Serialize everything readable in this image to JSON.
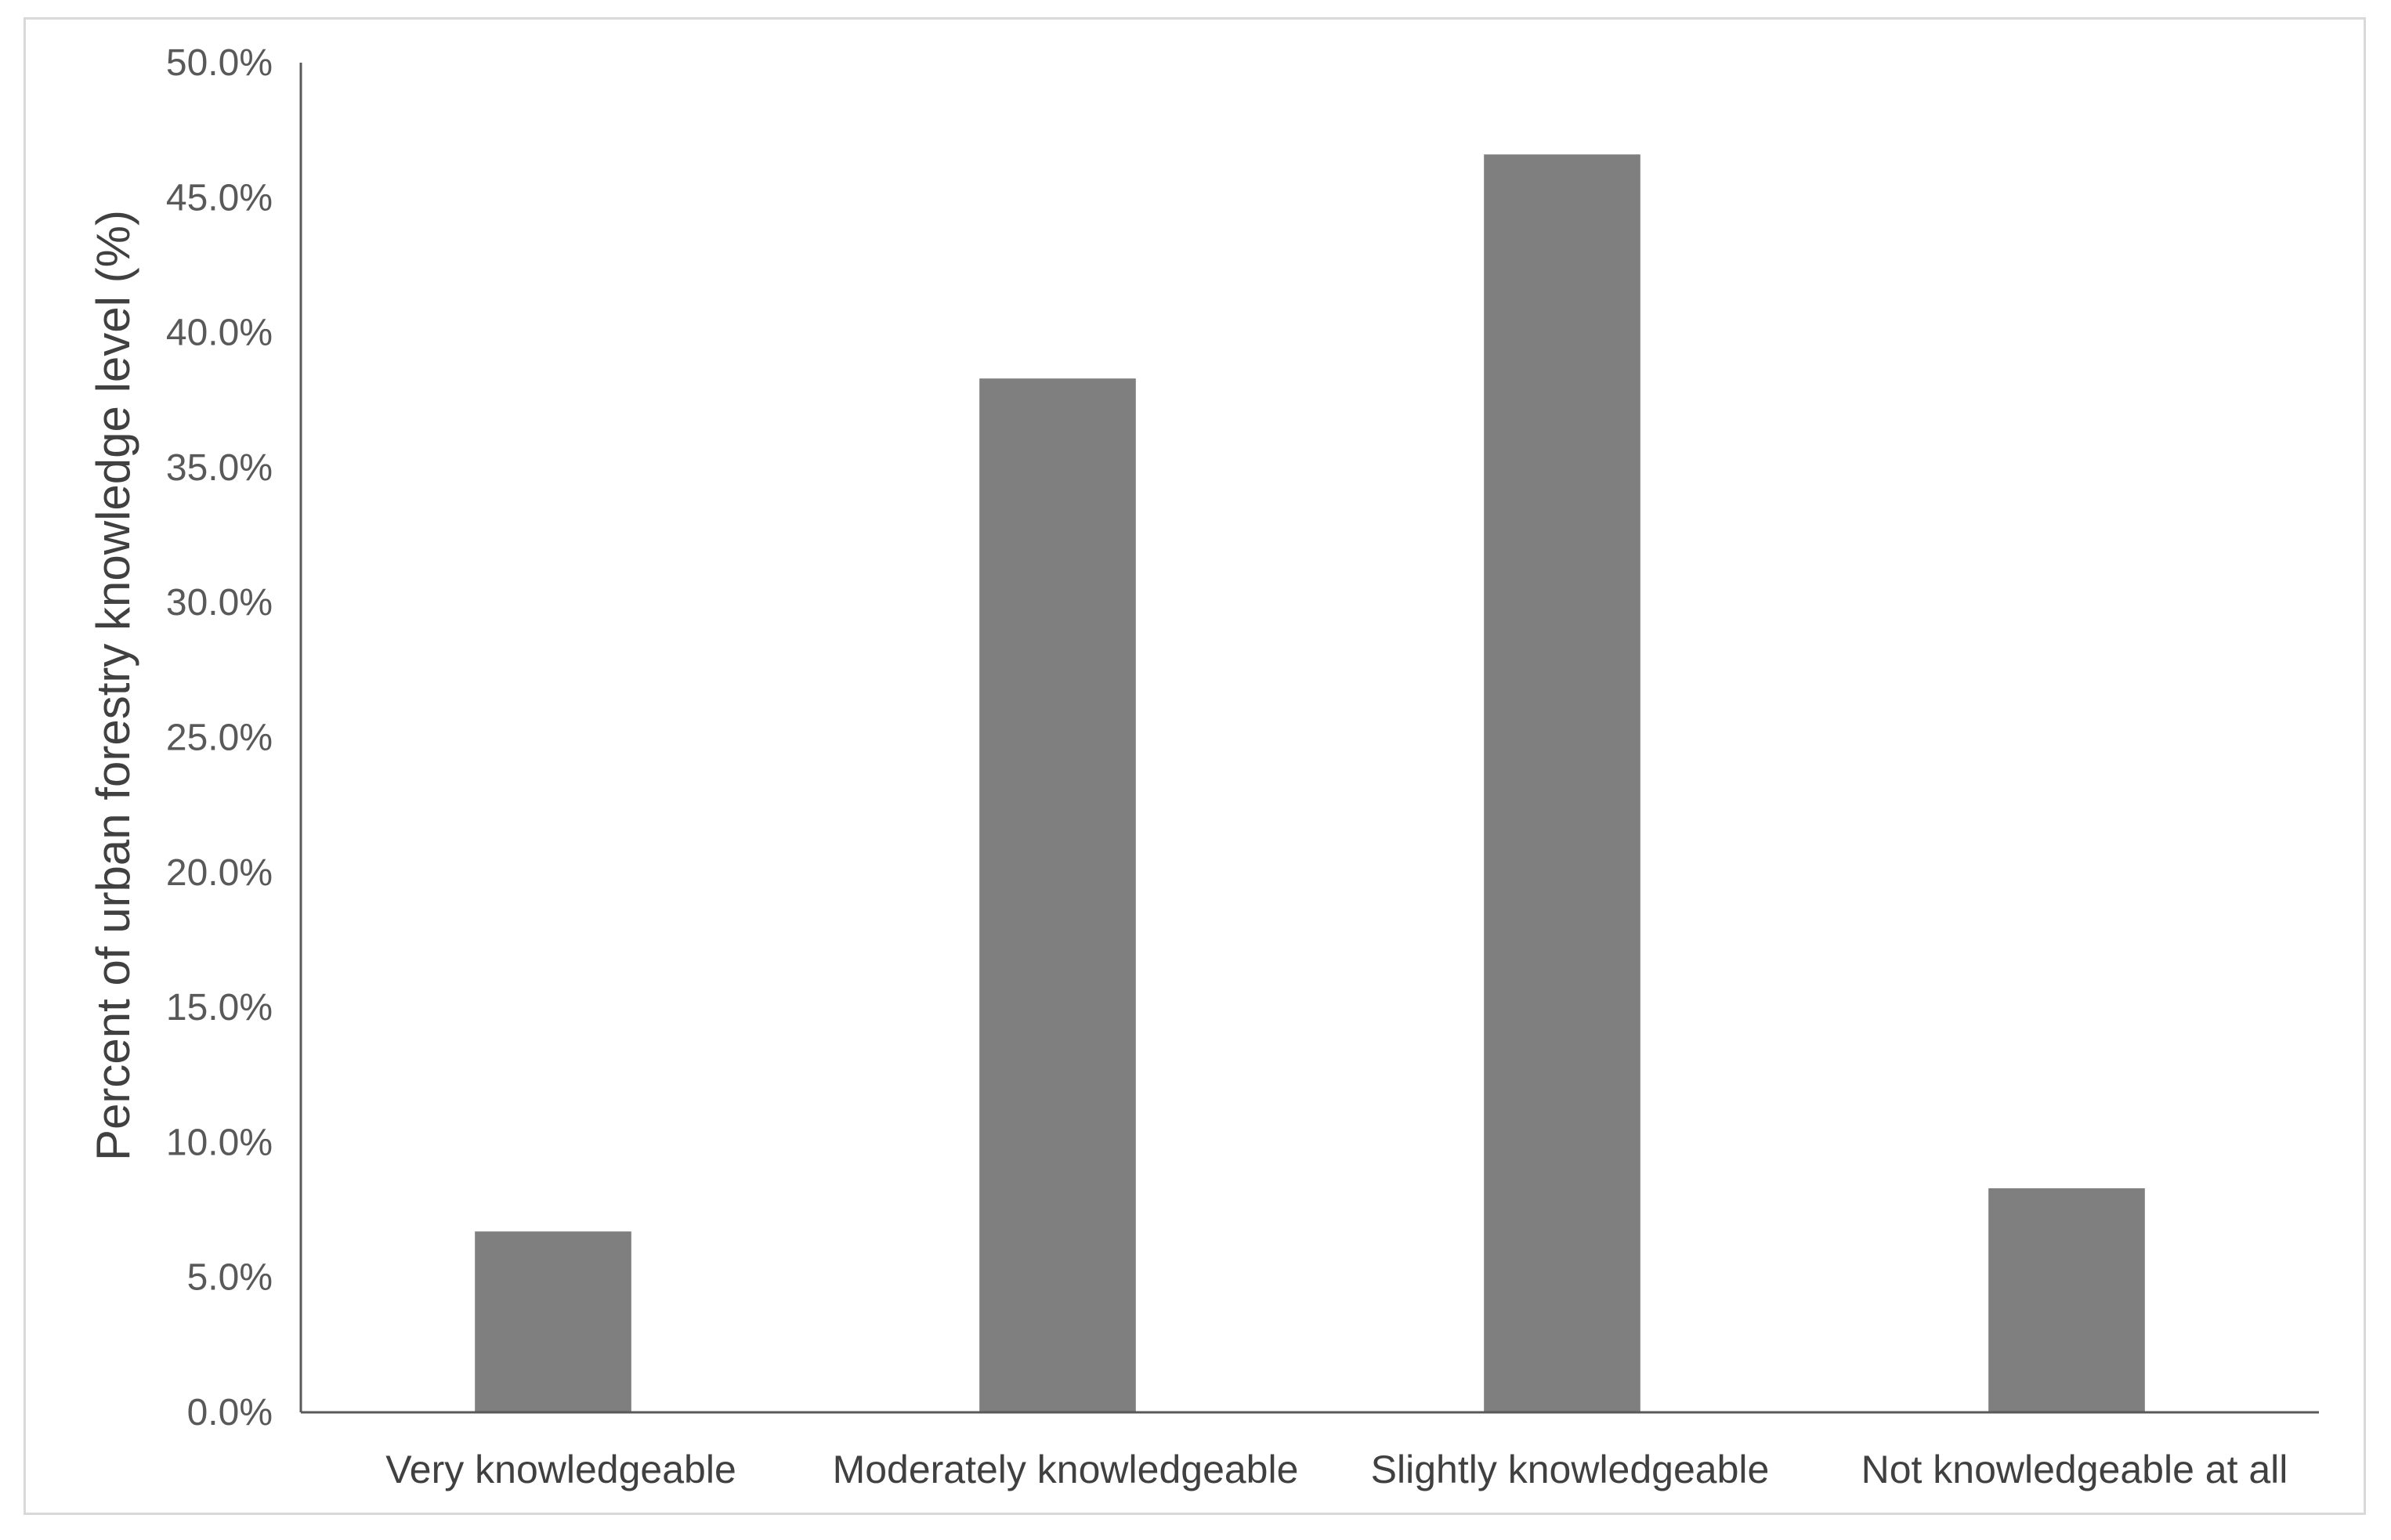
{
  "chart_data": {
    "type": "bar",
    "title": "",
    "xlabel": "",
    "ylabel": "Percent of urban forestry knowledge level (%)",
    "categories": [
      "Very knowledgeable",
      "Moderately knowledgeable",
      "Slightly knowledgeable",
      "Not knowledgeable at all"
    ],
    "values": [
      6.7,
      38.3,
      46.6,
      8.3
    ],
    "ylim": [
      0,
      50
    ],
    "yticks": [
      "0.0%",
      "5.0%",
      "10.0%",
      "15.0%",
      "20.0%",
      "25.0%",
      "30.0%",
      "35.0%",
      "40.0%",
      "45.0%",
      "50.0%"
    ],
    "grid": false,
    "legend": "none",
    "bar_color": "#7f7f7f",
    "axis_color": "#595959"
  }
}
